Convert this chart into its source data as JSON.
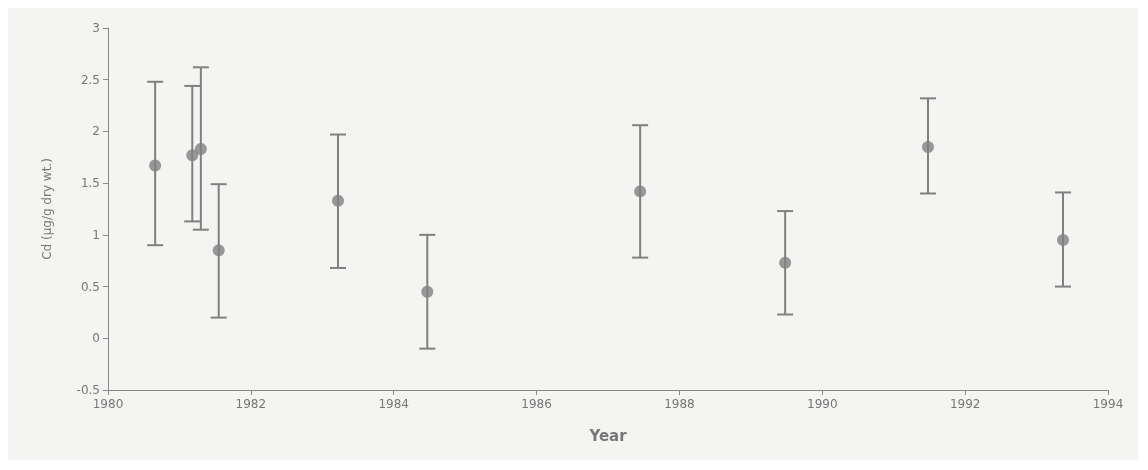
{
  "chart_data": {
    "type": "scatter",
    "xlabel": "Year",
    "ylabel": "Cd (µg/g dry wt.)",
    "x": [
      1980.66,
      1981.18,
      1981.3,
      1981.55,
      1983.22,
      1984.47,
      1987.45,
      1989.48,
      1991.48,
      1993.37
    ],
    "values": [
      1.67,
      1.77,
      1.83,
      0.85,
      1.33,
      0.45,
      1.42,
      0.73,
      1.85,
      0.95
    ],
    "errors": [
      [
        0.9,
        2.48
      ],
      [
        1.13,
        2.44
      ],
      [
        1.05,
        2.62
      ],
      [
        0.2,
        1.49
      ],
      [
        0.68,
        1.97
      ],
      [
        -0.1,
        1.0
      ],
      [
        0.78,
        2.06
      ],
      [
        0.23,
        1.23
      ],
      [
        1.4,
        2.32
      ],
      [
        0.5,
        1.41
      ]
    ],
    "color": "#808080",
    "marker": "circle",
    "xlim": [
      1980,
      1994
    ],
    "xticks": [
      1980,
      1982,
      1984,
      1986,
      1988,
      1990,
      1992,
      1994
    ],
    "ylim": [
      -0.5,
      3
    ],
    "yticks": [
      -0.5,
      0,
      0.5,
      1,
      1.5,
      2,
      2.5,
      3
    ],
    "grid": false
  }
}
